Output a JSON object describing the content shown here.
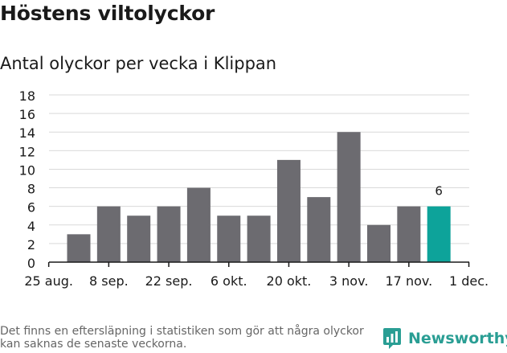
{
  "title": "Höstens viltolyckor",
  "subtitle": "Antal olyckor per vecka i Klippan",
  "footnote": "Det finns en eftersläpning i statistiken som gör att några olyckor kan saknas de senaste veckorna.",
  "brand": "Newsworthy",
  "colors": {
    "bar": "#6c6b70",
    "highlight": "#0da39a",
    "grid": "#d9d9d9",
    "axis": "#1a1a1a",
    "brand": "#2a9e94"
  },
  "chart_data": {
    "type": "bar",
    "title": "Antal olyckor per vecka i Klippan",
    "xlabel": "",
    "ylabel": "",
    "ylim": [
      0,
      18
    ],
    "yticks": [
      0,
      2,
      4,
      6,
      8,
      10,
      12,
      14,
      16,
      18
    ],
    "xticks": [
      "25 aug.",
      "8 sep.",
      "22 sep.",
      "6 okt.",
      "20 okt.",
      "3 nov.",
      "17 nov.",
      "1 dec."
    ],
    "values": [
      3,
      6,
      5,
      6,
      8,
      5,
      5,
      11,
      7,
      14,
      4,
      6,
      6
    ],
    "highlight_index": 12,
    "highlight_label": "6",
    "grid": true,
    "legend": "none"
  }
}
